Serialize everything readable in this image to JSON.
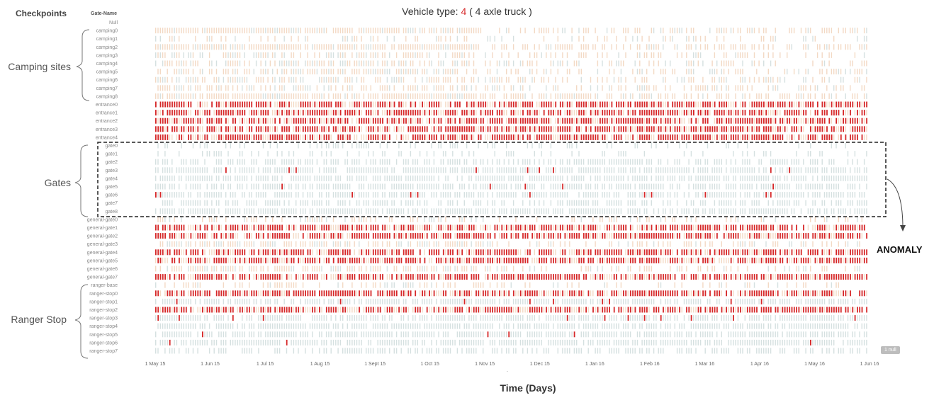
{
  "header": {
    "checkpoints": "Checkpoints",
    "gate_name": "Gate-Name"
  },
  "title": {
    "prefix": "Vehicle type: ",
    "number": "4",
    "suffix": " ( 4 axle truck )"
  },
  "groups": {
    "camping": "Camping sites",
    "gates": "Gates",
    "ranger": "Ranger Stop"
  },
  "annotation": "ANOMALY",
  "null_badge": "1 null",
  "colors": {
    "high": "#d62728",
    "medium": "#e8a0a0",
    "peach": "#f3d9c4",
    "grey": "#d5e0e0",
    "title_accent": "#d62728"
  },
  "chart_data": {
    "type": "heatmap",
    "title": "Vehicle type: 4 ( 4 axle truck )",
    "xlabel": "Time (Days)",
    "ylabel": "Gate-Name",
    "x_ticks": [
      "1 May 15",
      "1 Jun 15",
      "1 Jul 15",
      "1 Aug 15",
      "1 Sept 15",
      "1 Oct 15",
      "1 Nov 15",
      "1 Dec 15",
      "1 Jan 16",
      "1 Feb 16",
      "1 Mar 16",
      "1 Apr 16",
      "1 May 16",
      "1 Jun 16"
    ],
    "x_range": [
      "2015-05-01",
      "2016-06-01"
    ],
    "rows": [
      {
        "name": "Null",
        "pattern": "none"
      },
      {
        "name": "camping0",
        "pattern": "peach-dense"
      },
      {
        "name": "camping1",
        "pattern": "peach-sparse"
      },
      {
        "name": "camping2",
        "pattern": "peach-dense"
      },
      {
        "name": "camping3",
        "pattern": "peach-mixed"
      },
      {
        "name": "camping4",
        "pattern": "peach-mixed"
      },
      {
        "name": "camping5",
        "pattern": "peach-mixed"
      },
      {
        "name": "camping6",
        "pattern": "peach-mixed"
      },
      {
        "name": "camping7",
        "pattern": "peach-mixed"
      },
      {
        "name": "camping8",
        "pattern": "peach-dense"
      },
      {
        "name": "entrance0",
        "pattern": "red-dense"
      },
      {
        "name": "entrance1",
        "pattern": "red-dense"
      },
      {
        "name": "entrance2",
        "pattern": "red-dense"
      },
      {
        "name": "entrance3",
        "pattern": "red-dense"
      },
      {
        "name": "entrance4",
        "pattern": "red-dense"
      },
      {
        "name": "gate0",
        "pattern": "grey-sparse"
      },
      {
        "name": "gate1",
        "pattern": "grey-sparse"
      },
      {
        "name": "gate2",
        "pattern": "grey-mixed"
      },
      {
        "name": "gate3",
        "pattern": "grey-red"
      },
      {
        "name": "gate4",
        "pattern": "grey-dense"
      },
      {
        "name": "gate5",
        "pattern": "grey-red"
      },
      {
        "name": "gate6",
        "pattern": "grey-red"
      },
      {
        "name": "gate7",
        "pattern": "grey-mixed"
      },
      {
        "name": "gate8",
        "pattern": "grey-dense"
      },
      {
        "name": "general-gate0",
        "pattern": "peach-sparse"
      },
      {
        "name": "general-gate1",
        "pattern": "red-dense"
      },
      {
        "name": "general-gate2",
        "pattern": "red-dense"
      },
      {
        "name": "general-gate3",
        "pattern": "peach-mixed"
      },
      {
        "name": "general-gate4",
        "pattern": "red-dense"
      },
      {
        "name": "general-gate5",
        "pattern": "red-dense"
      },
      {
        "name": "general-gate6",
        "pattern": "peach-mixed"
      },
      {
        "name": "general-gate7",
        "pattern": "red-dense"
      },
      {
        "name": "ranger-base",
        "pattern": "peach-sparse"
      },
      {
        "name": "ranger-stop0",
        "pattern": "red-dense"
      },
      {
        "name": "ranger-stop1",
        "pattern": "grey-red"
      },
      {
        "name": "ranger-stop2",
        "pattern": "red-dense"
      },
      {
        "name": "ranger-stop3",
        "pattern": "grey-red"
      },
      {
        "name": "ranger-stop4",
        "pattern": "grey-dense"
      },
      {
        "name": "ranger-stop5",
        "pattern": "grey-red"
      },
      {
        "name": "ranger-stop6",
        "pattern": "grey-red"
      },
      {
        "name": "ranger-stop7",
        "pattern": "grey-mixed"
      }
    ]
  }
}
